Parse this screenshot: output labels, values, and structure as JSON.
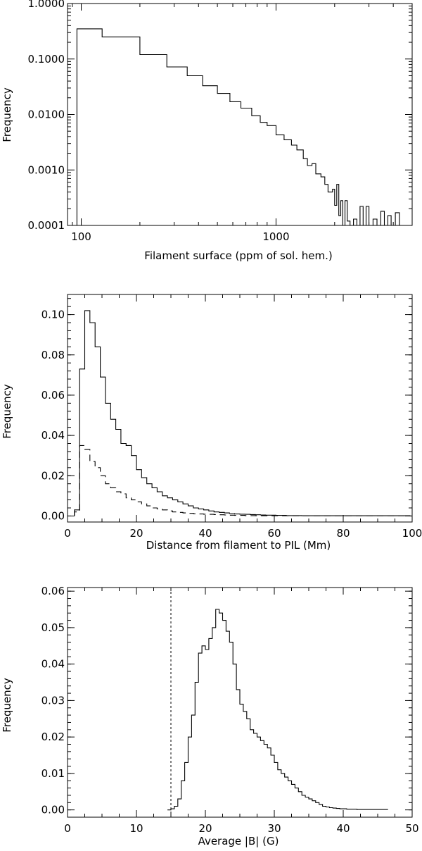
{
  "chart_data": [
    {
      "type": "histogram",
      "xlabel": "Filament surface (ppm of sol. hem.)",
      "ylabel": "Frequency",
      "xscale": "log",
      "yscale": "log",
      "xlim": [
        85,
        5000
      ],
      "ylim": [
        0.0001,
        1.0
      ],
      "xticks": [
        100,
        1000
      ],
      "xtick_labels": [
        "100",
        "1000"
      ],
      "yticks": [
        0.0001,
        0.001,
        0.01,
        0.1,
        1.0
      ],
      "ytick_labels": [
        "0.0001",
        "0.0010",
        "0.0100",
        "0.1000",
        "1.0000"
      ],
      "series": [
        {
          "style": "solid",
          "edges": [
            95,
            128,
            200,
            275,
            350,
            420,
            500,
            580,
            660,
            750,
            830,
            900,
            1000,
            1100,
            1200,
            1280,
            1380,
            1450,
            1530,
            1600,
            1700,
            1780,
            1850,
            1950,
            2000,
            2050,
            2100,
            2150,
            2200,
            2260,
            2320,
            2400,
            2500,
            2600,
            2700,
            2800,
            2900,
            3000,
            3150,
            3300,
            3450,
            3600,
            3750,
            3900,
            4100,
            4300,
            4500,
            4700,
            4900
          ],
          "values": [
            0.35,
            0.25,
            0.12,
            0.072,
            0.05,
            0.033,
            0.024,
            0.017,
            0.013,
            0.0095,
            0.0072,
            0.0063,
            0.0043,
            0.0035,
            0.0028,
            0.0023,
            0.0016,
            0.0012,
            0.0013,
            0.00085,
            0.00075,
            0.00055,
            0.0004,
            0.00045,
            0.00023,
            0.00055,
            0.00015,
            0.00028,
            0.0001,
            0.00028,
            0.00012,
            0.0001,
            0.00013,
            0.0001,
            0.00022,
            0.0001,
            0.00022,
            0.0001,
            0.00013,
            0.0001,
            0.00018,
            0.0001,
            0.00015,
            0.0001,
            0.00017,
            0.0001,
            0.0001,
            0.0001
          ]
        }
      ]
    },
    {
      "type": "histogram",
      "xlabel": "Distance from filament to PIL (Mm)",
      "ylabel": "Frequency",
      "xlim": [
        0,
        100
      ],
      "ylim": [
        -0.003,
        0.11
      ],
      "xticks": [
        0,
        20,
        40,
        60,
        80,
        100
      ],
      "xtick_labels": [
        "0",
        "20",
        "40",
        "60",
        "80",
        "100"
      ],
      "yticks": [
        0,
        0.02,
        0.04,
        0.06,
        0.08,
        0.1
      ],
      "ytick_labels": [
        "0.00",
        "0.02",
        "0.04",
        "0.06",
        "0.08",
        "0.10"
      ],
      "bin_start": 2,
      "bin_width": 1.5,
      "series": [
        {
          "style": "solid",
          "values": [
            0.003,
            0.073,
            0.102,
            0.096,
            0.084,
            0.069,
            0.056,
            0.048,
            0.043,
            0.036,
            0.035,
            0.03,
            0.023,
            0.019,
            0.016,
            0.014,
            0.012,
            0.01,
            0.009,
            0.008,
            0.007,
            0.006,
            0.005,
            0.004,
            0.0035,
            0.003,
            0.0025,
            0.002,
            0.0018,
            0.0015,
            0.0012,
            0.001,
            0.0009,
            0.0008,
            0.0007,
            0.0006,
            0.0005,
            0.0004,
            0.0004,
            0.0003,
            0.0003,
            0.0002,
            0.0002,
            0.0002,
            0.0001,
            0.0001,
            0.0001,
            0.0001,
            0.0001,
            0.0001,
            0.0001,
            0.0001,
            0.0001,
            0.0001,
            0.0001,
            0.0001,
            0.0001,
            0.0001,
            0.0001,
            0.0001,
            0.0001,
            0.0001,
            0.0001,
            0.0001,
            0.0001
          ]
        },
        {
          "style": "dashed",
          "values": [
            0.002,
            0.035,
            0.033,
            0.027,
            0.024,
            0.02,
            0.016,
            0.014,
            0.012,
            0.011,
            0.009,
            0.008,
            0.007,
            0.006,
            0.005,
            0.004,
            0.0035,
            0.003,
            0.0025,
            0.002,
            0.0018,
            0.0015,
            0.0013,
            0.0011,
            0.001,
            0.0009,
            0.0008,
            0.0007,
            0.0006,
            0.0005,
            0.0004,
            0.0003,
            0.0003,
            0.0002,
            0.0002,
            0.0001,
            0.0001,
            0.0001,
            0.0001,
            0.0001,
            0.0001,
            0.0001,
            0.0001,
            0.0001,
            0.0001,
            0.0001,
            0.0001,
            0.0001,
            0.0001,
            0.0001,
            0.0001,
            0.0001,
            0.0001,
            0.0001,
            0.0001,
            0.0001,
            0.0001,
            0.0001,
            0.0001,
            0.0001,
            0.0001,
            0.0001,
            0.0001,
            0.0001,
            0.0001
          ]
        }
      ]
    },
    {
      "type": "histogram",
      "xlabel": "Average |B| (G)",
      "ylabel": "Frequency",
      "xlim": [
        0,
        50
      ],
      "ylim": [
        -0.002,
        0.061
      ],
      "xticks": [
        0,
        10,
        20,
        30,
        40,
        50
      ],
      "xtick_labels": [
        "0",
        "10",
        "20",
        "30",
        "40",
        "50"
      ],
      "yticks": [
        0,
        0.01,
        0.02,
        0.03,
        0.04,
        0.05,
        0.06
      ],
      "ytick_labels": [
        "0.00",
        "0.01",
        "0.02",
        "0.03",
        "0.04",
        "0.05",
        "0.06"
      ],
      "vline_x": 15,
      "bin_start": 14.5,
      "bin_width": 0.5,
      "series": [
        {
          "style": "solid",
          "values": [
            0.0,
            0.0003,
            0.001,
            0.003,
            0.008,
            0.013,
            0.02,
            0.026,
            0.035,
            0.043,
            0.045,
            0.044,
            0.047,
            0.05,
            0.055,
            0.054,
            0.052,
            0.049,
            0.046,
            0.04,
            0.033,
            0.029,
            0.027,
            0.025,
            0.022,
            0.021,
            0.02,
            0.019,
            0.018,
            0.017,
            0.015,
            0.013,
            0.011,
            0.01,
            0.009,
            0.008,
            0.007,
            0.006,
            0.005,
            0.004,
            0.0035,
            0.003,
            0.0025,
            0.002,
            0.0015,
            0.001,
            0.0008,
            0.0006,
            0.0005,
            0.0004,
            0.0003,
            0.0003,
            0.0002,
            0.0002,
            0.0002,
            0.0001,
            0.0001,
            0.0001,
            0.0001,
            0.0001,
            0.0001,
            0.0001,
            0.0001,
            0.0001
          ]
        }
      ]
    }
  ]
}
